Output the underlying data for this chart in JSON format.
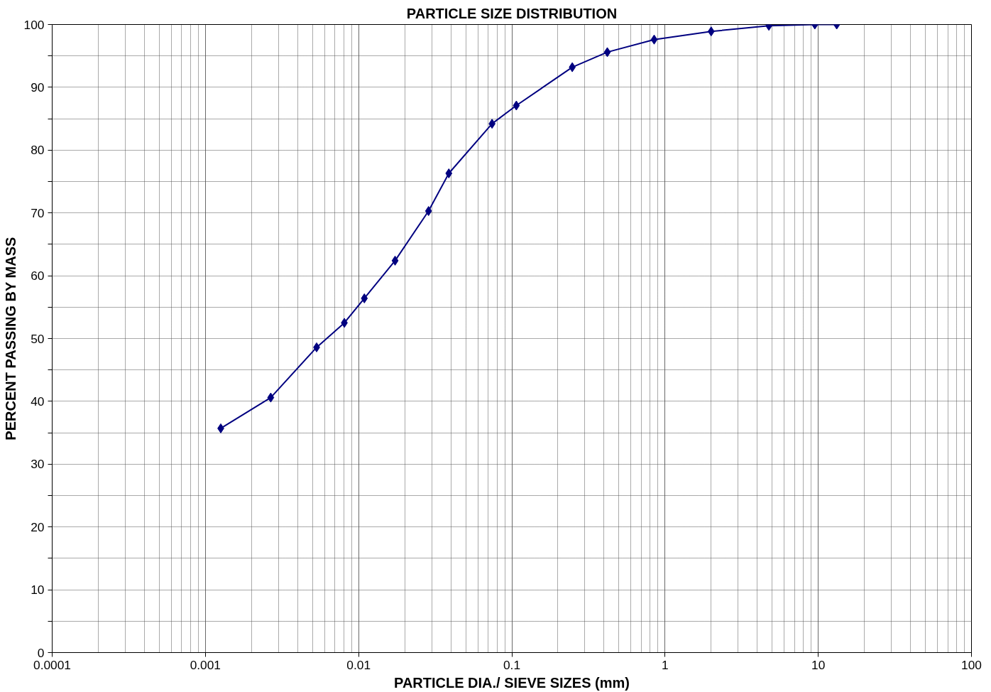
{
  "chart_data": {
    "type": "line",
    "title": "PARTICLE SIZE DISTRIBUTION",
    "xlabel": "PARTICLE DIA./ SIEVE SIZES (mm)",
    "ylabel": "PERCENT PASSING BY MASS",
    "log": "x",
    "grid": true,
    "marker": "diamond",
    "line_style": "solid",
    "xlim": [
      0.0001,
      100
    ],
    "xticks": [
      0.0001,
      0.001,
      0.01,
      0.1,
      1,
      10,
      100
    ],
    "ylim": [
      0,
      100
    ],
    "yticks": [
      0,
      {
        "value": 5,
        "label": null
      },
      10,
      {
        "value": 15,
        "label": null
      },
      20,
      {
        "value": 25,
        "label": null
      },
      30,
      {
        "value": 35,
        "label": null
      },
      40,
      {
        "value": 45,
        "label": null
      },
      50,
      {
        "value": 55,
        "label": null
      },
      60,
      {
        "value": 65,
        "label": null
      },
      70,
      {
        "value": 75,
        "label": null
      },
      80,
      {
        "value": 85,
        "label": null
      },
      90,
      {
        "value": 95,
        "label": null
      },
      100
    ],
    "series": [
      {
        "color": "#000080",
        "x": [
          0.00126,
          0.00267,
          0.00532,
          0.00807,
          0.0109,
          0.0173,
          0.0286,
          0.0388,
          0.0743,
          0.107,
          0.248,
          0.42,
          0.849,
          2.0,
          4.76,
          9.5,
          13.2
        ],
        "values": [
          35.7,
          40.6,
          48.6,
          52.5,
          56.4,
          62.4,
          70.3,
          76.3,
          84.2,
          87.1,
          93.2,
          95.6,
          97.6,
          98.9,
          99.8,
          100,
          100
        ]
      }
    ]
  }
}
